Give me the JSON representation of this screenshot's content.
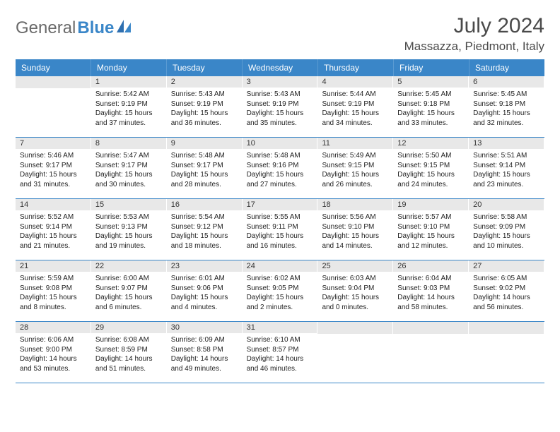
{
  "brand": {
    "part1": "General",
    "part2": "Blue"
  },
  "title": "July 2024",
  "location": "Massazza, Piedmont, Italy",
  "colors": {
    "header_bg": "#3a86c8",
    "header_text": "#ffffff",
    "daynum_bg": "#e8e8e8",
    "text": "#222222",
    "rule": "#3a86c8",
    "logo_gray": "#6a6a6a",
    "logo_blue": "#3a86c8"
  },
  "day_names": [
    "Sunday",
    "Monday",
    "Tuesday",
    "Wednesday",
    "Thursday",
    "Friday",
    "Saturday"
  ],
  "weeks": [
    [
      null,
      {
        "n": "1",
        "sr": "Sunrise: 5:42 AM",
        "ss": "Sunset: 9:19 PM",
        "dl": "Daylight: 15 hours and 37 minutes."
      },
      {
        "n": "2",
        "sr": "Sunrise: 5:43 AM",
        "ss": "Sunset: 9:19 PM",
        "dl": "Daylight: 15 hours and 36 minutes."
      },
      {
        "n": "3",
        "sr": "Sunrise: 5:43 AM",
        "ss": "Sunset: 9:19 PM",
        "dl": "Daylight: 15 hours and 35 minutes."
      },
      {
        "n": "4",
        "sr": "Sunrise: 5:44 AM",
        "ss": "Sunset: 9:19 PM",
        "dl": "Daylight: 15 hours and 34 minutes."
      },
      {
        "n": "5",
        "sr": "Sunrise: 5:45 AM",
        "ss": "Sunset: 9:18 PM",
        "dl": "Daylight: 15 hours and 33 minutes."
      },
      {
        "n": "6",
        "sr": "Sunrise: 5:45 AM",
        "ss": "Sunset: 9:18 PM",
        "dl": "Daylight: 15 hours and 32 minutes."
      }
    ],
    [
      {
        "n": "7",
        "sr": "Sunrise: 5:46 AM",
        "ss": "Sunset: 9:17 PM",
        "dl": "Daylight: 15 hours and 31 minutes."
      },
      {
        "n": "8",
        "sr": "Sunrise: 5:47 AM",
        "ss": "Sunset: 9:17 PM",
        "dl": "Daylight: 15 hours and 30 minutes."
      },
      {
        "n": "9",
        "sr": "Sunrise: 5:48 AM",
        "ss": "Sunset: 9:17 PM",
        "dl": "Daylight: 15 hours and 28 minutes."
      },
      {
        "n": "10",
        "sr": "Sunrise: 5:48 AM",
        "ss": "Sunset: 9:16 PM",
        "dl": "Daylight: 15 hours and 27 minutes."
      },
      {
        "n": "11",
        "sr": "Sunrise: 5:49 AM",
        "ss": "Sunset: 9:15 PM",
        "dl": "Daylight: 15 hours and 26 minutes."
      },
      {
        "n": "12",
        "sr": "Sunrise: 5:50 AM",
        "ss": "Sunset: 9:15 PM",
        "dl": "Daylight: 15 hours and 24 minutes."
      },
      {
        "n": "13",
        "sr": "Sunrise: 5:51 AM",
        "ss": "Sunset: 9:14 PM",
        "dl": "Daylight: 15 hours and 23 minutes."
      }
    ],
    [
      {
        "n": "14",
        "sr": "Sunrise: 5:52 AM",
        "ss": "Sunset: 9:14 PM",
        "dl": "Daylight: 15 hours and 21 minutes."
      },
      {
        "n": "15",
        "sr": "Sunrise: 5:53 AM",
        "ss": "Sunset: 9:13 PM",
        "dl": "Daylight: 15 hours and 19 minutes."
      },
      {
        "n": "16",
        "sr": "Sunrise: 5:54 AM",
        "ss": "Sunset: 9:12 PM",
        "dl": "Daylight: 15 hours and 18 minutes."
      },
      {
        "n": "17",
        "sr": "Sunrise: 5:55 AM",
        "ss": "Sunset: 9:11 PM",
        "dl": "Daylight: 15 hours and 16 minutes."
      },
      {
        "n": "18",
        "sr": "Sunrise: 5:56 AM",
        "ss": "Sunset: 9:10 PM",
        "dl": "Daylight: 15 hours and 14 minutes."
      },
      {
        "n": "19",
        "sr": "Sunrise: 5:57 AM",
        "ss": "Sunset: 9:10 PM",
        "dl": "Daylight: 15 hours and 12 minutes."
      },
      {
        "n": "20",
        "sr": "Sunrise: 5:58 AM",
        "ss": "Sunset: 9:09 PM",
        "dl": "Daylight: 15 hours and 10 minutes."
      }
    ],
    [
      {
        "n": "21",
        "sr": "Sunrise: 5:59 AM",
        "ss": "Sunset: 9:08 PM",
        "dl": "Daylight: 15 hours and 8 minutes."
      },
      {
        "n": "22",
        "sr": "Sunrise: 6:00 AM",
        "ss": "Sunset: 9:07 PM",
        "dl": "Daylight: 15 hours and 6 minutes."
      },
      {
        "n": "23",
        "sr": "Sunrise: 6:01 AM",
        "ss": "Sunset: 9:06 PM",
        "dl": "Daylight: 15 hours and 4 minutes."
      },
      {
        "n": "24",
        "sr": "Sunrise: 6:02 AM",
        "ss": "Sunset: 9:05 PM",
        "dl": "Daylight: 15 hours and 2 minutes."
      },
      {
        "n": "25",
        "sr": "Sunrise: 6:03 AM",
        "ss": "Sunset: 9:04 PM",
        "dl": "Daylight: 15 hours and 0 minutes."
      },
      {
        "n": "26",
        "sr": "Sunrise: 6:04 AM",
        "ss": "Sunset: 9:03 PM",
        "dl": "Daylight: 14 hours and 58 minutes."
      },
      {
        "n": "27",
        "sr": "Sunrise: 6:05 AM",
        "ss": "Sunset: 9:02 PM",
        "dl": "Daylight: 14 hours and 56 minutes."
      }
    ],
    [
      {
        "n": "28",
        "sr": "Sunrise: 6:06 AM",
        "ss": "Sunset: 9:00 PM",
        "dl": "Daylight: 14 hours and 53 minutes."
      },
      {
        "n": "29",
        "sr": "Sunrise: 6:08 AM",
        "ss": "Sunset: 8:59 PM",
        "dl": "Daylight: 14 hours and 51 minutes."
      },
      {
        "n": "30",
        "sr": "Sunrise: 6:09 AM",
        "ss": "Sunset: 8:58 PM",
        "dl": "Daylight: 14 hours and 49 minutes."
      },
      {
        "n": "31",
        "sr": "Sunrise: 6:10 AM",
        "ss": "Sunset: 8:57 PM",
        "dl": "Daylight: 14 hours and 46 minutes."
      },
      null,
      null,
      null
    ]
  ]
}
